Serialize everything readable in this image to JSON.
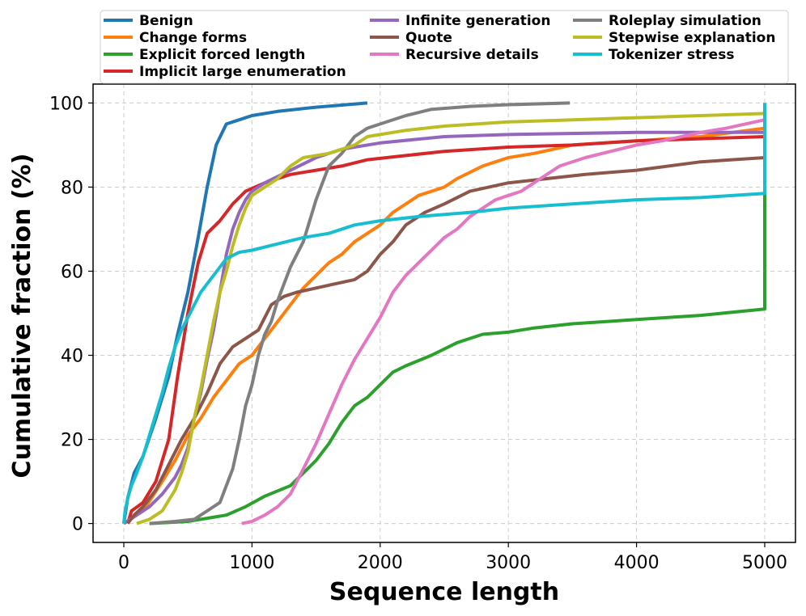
{
  "chart_data": {
    "type": "line",
    "title": "",
    "xlabel": "Sequence length",
    "ylabel": "Cumulative fraction (%)",
    "xlim": [
      -240,
      5240
    ],
    "ylim": [
      -4.5,
      104.5
    ],
    "xticks": [
      0,
      1000,
      2000,
      3000,
      4000,
      5000
    ],
    "yticks": [
      0,
      20,
      40,
      60,
      80,
      100
    ],
    "grid": true,
    "legend_position": "top",
    "series": [
      {
        "name": "Benign",
        "color": "#1f77b4",
        "points": [
          [
            0,
            0
          ],
          [
            30,
            6
          ],
          [
            80,
            12
          ],
          [
            150,
            16
          ],
          [
            250,
            25
          ],
          [
            350,
            35
          ],
          [
            420,
            45
          ],
          [
            500,
            55
          ],
          [
            580,
            68
          ],
          [
            650,
            80
          ],
          [
            720,
            90
          ],
          [
            800,
            95
          ],
          [
            900,
            96
          ],
          [
            1000,
            97
          ],
          [
            1200,
            98
          ],
          [
            1500,
            99
          ],
          [
            1900,
            100
          ]
        ]
      },
      {
        "name": "Change forms",
        "color": "#ff7f0e",
        "points": [
          [
            0,
            0
          ],
          [
            150,
            3
          ],
          [
            300,
            10
          ],
          [
            400,
            15
          ],
          [
            500,
            21
          ],
          [
            600,
            25
          ],
          [
            700,
            30
          ],
          [
            800,
            34
          ],
          [
            900,
            38
          ],
          [
            1000,
            40
          ],
          [
            1100,
            44
          ],
          [
            1200,
            48
          ],
          [
            1300,
            52
          ],
          [
            1400,
            56
          ],
          [
            1500,
            59
          ],
          [
            1600,
            62
          ],
          [
            1700,
            64
          ],
          [
            1800,
            67
          ],
          [
            1900,
            69
          ],
          [
            2000,
            71
          ],
          [
            2100,
            74
          ],
          [
            2200,
            76
          ],
          [
            2300,
            78
          ],
          [
            2400,
            79
          ],
          [
            2500,
            80
          ],
          [
            2600,
            82
          ],
          [
            2800,
            85
          ],
          [
            3000,
            87
          ],
          [
            3200,
            88
          ],
          [
            3500,
            90
          ],
          [
            4000,
            91
          ],
          [
            4500,
            92
          ],
          [
            5000,
            94
          ]
        ]
      },
      {
        "name": "Explicit forced length",
        "color": "#2ca02c",
        "points": [
          [
            200,
            0
          ],
          [
            500,
            0.5
          ],
          [
            800,
            2
          ],
          [
            950,
            4
          ],
          [
            1100,
            6.5
          ],
          [
            1300,
            9
          ],
          [
            1400,
            12
          ],
          [
            1500,
            15
          ],
          [
            1600,
            19
          ],
          [
            1700,
            24
          ],
          [
            1800,
            28
          ],
          [
            1900,
            30
          ],
          [
            2000,
            33
          ],
          [
            2100,
            36
          ],
          [
            2200,
            37.5
          ],
          [
            2400,
            40
          ],
          [
            2600,
            43
          ],
          [
            2800,
            45
          ],
          [
            3000,
            45.5
          ],
          [
            3200,
            46.5
          ],
          [
            3500,
            47.5
          ],
          [
            4000,
            48.5
          ],
          [
            4500,
            49.5
          ],
          [
            5000,
            51
          ],
          [
            5000,
            79
          ]
        ]
      },
      {
        "name": "Implicit large enumeration",
        "color": "#d62728",
        "points": [
          [
            30,
            0
          ],
          [
            60,
            3
          ],
          [
            150,
            5
          ],
          [
            250,
            10
          ],
          [
            350,
            20
          ],
          [
            420,
            35
          ],
          [
            500,
            50
          ],
          [
            580,
            62
          ],
          [
            650,
            69
          ],
          [
            750,
            72
          ],
          [
            850,
            76
          ],
          [
            950,
            79
          ],
          [
            1100,
            81
          ],
          [
            1300,
            83
          ],
          [
            1500,
            84
          ],
          [
            1700,
            85
          ],
          [
            1900,
            86.5
          ],
          [
            2200,
            87.5
          ],
          [
            2500,
            88.5
          ],
          [
            3000,
            89.5
          ],
          [
            3500,
            90
          ],
          [
            4000,
            91
          ],
          [
            4500,
            91.5
          ],
          [
            5000,
            92
          ]
        ]
      },
      {
        "name": "Infinite generation",
        "color": "#9467bd",
        "points": [
          [
            0,
            0
          ],
          [
            100,
            2
          ],
          [
            200,
            4
          ],
          [
            300,
            7
          ],
          [
            400,
            11
          ],
          [
            450,
            14
          ],
          [
            500,
            18
          ],
          [
            550,
            25
          ],
          [
            600,
            31
          ],
          [
            650,
            39
          ],
          [
            700,
            46
          ],
          [
            750,
            55
          ],
          [
            800,
            64
          ],
          [
            850,
            70
          ],
          [
            900,
            74
          ],
          [
            950,
            77
          ],
          [
            1000,
            79
          ],
          [
            1100,
            81
          ],
          [
            1300,
            84
          ],
          [
            1500,
            87
          ],
          [
            1700,
            89
          ],
          [
            2000,
            90.5
          ],
          [
            2500,
            92
          ],
          [
            3000,
            92.5
          ],
          [
            4000,
            93
          ],
          [
            5000,
            93
          ]
        ]
      },
      {
        "name": "Quote",
        "color": "#8c564b",
        "points": [
          [
            30,
            0
          ],
          [
            80,
            2
          ],
          [
            150,
            4
          ],
          [
            250,
            8
          ],
          [
            350,
            14
          ],
          [
            450,
            20
          ],
          [
            550,
            25
          ],
          [
            650,
            31
          ],
          [
            750,
            38
          ],
          [
            850,
            42
          ],
          [
            950,
            44
          ],
          [
            1050,
            46
          ],
          [
            1150,
            52
          ],
          [
            1250,
            54
          ],
          [
            1350,
            55
          ],
          [
            1500,
            56
          ],
          [
            1650,
            57
          ],
          [
            1800,
            58
          ],
          [
            1900,
            60
          ],
          [
            2000,
            64
          ],
          [
            2100,
            67
          ],
          [
            2200,
            71
          ],
          [
            2350,
            74
          ],
          [
            2500,
            76
          ],
          [
            2700,
            79
          ],
          [
            3000,
            81
          ],
          [
            3300,
            82
          ],
          [
            3600,
            83
          ],
          [
            4000,
            84
          ],
          [
            4500,
            86
          ],
          [
            5000,
            87
          ]
        ]
      },
      {
        "name": "Recursive details",
        "color": "#e377c2",
        "points": [
          [
            920,
            0
          ],
          [
            1000,
            0.5
          ],
          [
            1100,
            2
          ],
          [
            1200,
            4
          ],
          [
            1300,
            7
          ],
          [
            1400,
            13
          ],
          [
            1500,
            19
          ],
          [
            1600,
            26
          ],
          [
            1700,
            33
          ],
          [
            1800,
            39
          ],
          [
            1900,
            44
          ],
          [
            2000,
            49
          ],
          [
            2100,
            55
          ],
          [
            2200,
            59
          ],
          [
            2300,
            62
          ],
          [
            2400,
            65
          ],
          [
            2500,
            68
          ],
          [
            2600,
            70
          ],
          [
            2700,
            73
          ],
          [
            2800,
            75
          ],
          [
            2900,
            77
          ],
          [
            3000,
            78
          ],
          [
            3100,
            79
          ],
          [
            3200,
            81
          ],
          [
            3300,
            83
          ],
          [
            3400,
            85
          ],
          [
            3600,
            87
          ],
          [
            3800,
            88.5
          ],
          [
            4000,
            90
          ],
          [
            4200,
            91
          ],
          [
            4500,
            93
          ],
          [
            4700,
            94
          ],
          [
            5000,
            96
          ]
        ]
      },
      {
        "name": "Roleplay simulation",
        "color": "#7f7f7f",
        "points": [
          [
            200,
            0
          ],
          [
            400,
            0.5
          ],
          [
            550,
            1
          ],
          [
            650,
            3
          ],
          [
            750,
            5
          ],
          [
            850,
            13
          ],
          [
            900,
            20
          ],
          [
            950,
            28
          ],
          [
            1000,
            33
          ],
          [
            1050,
            40
          ],
          [
            1100,
            45
          ],
          [
            1150,
            48
          ],
          [
            1200,
            53
          ],
          [
            1250,
            57
          ],
          [
            1300,
            61
          ],
          [
            1350,
            64
          ],
          [
            1400,
            67
          ],
          [
            1450,
            72
          ],
          [
            1500,
            77
          ],
          [
            1550,
            81
          ],
          [
            1600,
            85
          ],
          [
            1700,
            88
          ],
          [
            1800,
            92
          ],
          [
            1900,
            94
          ],
          [
            2000,
            95
          ],
          [
            2200,
            97
          ],
          [
            2400,
            98.5
          ],
          [
            2700,
            99.2
          ],
          [
            3000,
            99.6
          ],
          [
            3480,
            100
          ]
        ]
      },
      {
        "name": "Stepwise explanation",
        "color": "#bcbd22",
        "points": [
          [
            100,
            0
          ],
          [
            200,
            1
          ],
          [
            300,
            3
          ],
          [
            400,
            8
          ],
          [
            450,
            12
          ],
          [
            500,
            17
          ],
          [
            550,
            25
          ],
          [
            600,
            32
          ],
          [
            650,
            40
          ],
          [
            700,
            48
          ],
          [
            750,
            55
          ],
          [
            800,
            60
          ],
          [
            850,
            66
          ],
          [
            900,
            71
          ],
          [
            950,
            75
          ],
          [
            1000,
            78
          ],
          [
            1100,
            80
          ],
          [
            1200,
            82
          ],
          [
            1300,
            85
          ],
          [
            1400,
            87
          ],
          [
            1600,
            88
          ],
          [
            1800,
            90
          ],
          [
            1900,
            92
          ],
          [
            2000,
            92.5
          ],
          [
            2200,
            93.5
          ],
          [
            2500,
            94.5
          ],
          [
            3000,
            95.5
          ],
          [
            3500,
            96
          ],
          [
            4000,
            96.5
          ],
          [
            4500,
            97
          ],
          [
            5000,
            97.5
          ]
        ]
      },
      {
        "name": "Tokenizer stress",
        "color": "#17becf",
        "points": [
          [
            0,
            0
          ],
          [
            10,
            3
          ],
          [
            30,
            6
          ],
          [
            60,
            9
          ],
          [
            100,
            12
          ],
          [
            150,
            16
          ],
          [
            200,
            21
          ],
          [
            250,
            26
          ],
          [
            300,
            31
          ],
          [
            350,
            37
          ],
          [
            400,
            42
          ],
          [
            450,
            46
          ],
          [
            500,
            49
          ],
          [
            550,
            52
          ],
          [
            600,
            55
          ],
          [
            650,
            57
          ],
          [
            700,
            59
          ],
          [
            750,
            61
          ],
          [
            800,
            63
          ],
          [
            900,
            64.5
          ],
          [
            1000,
            65
          ],
          [
            1200,
            66.5
          ],
          [
            1400,
            68
          ],
          [
            1600,
            69
          ],
          [
            1800,
            71
          ],
          [
            2000,
            72
          ],
          [
            2300,
            73
          ],
          [
            2700,
            74
          ],
          [
            3000,
            75
          ],
          [
            3500,
            76
          ],
          [
            4000,
            77
          ],
          [
            4500,
            77.5
          ],
          [
            5000,
            78.5
          ],
          [
            5000,
            100
          ]
        ]
      }
    ]
  }
}
